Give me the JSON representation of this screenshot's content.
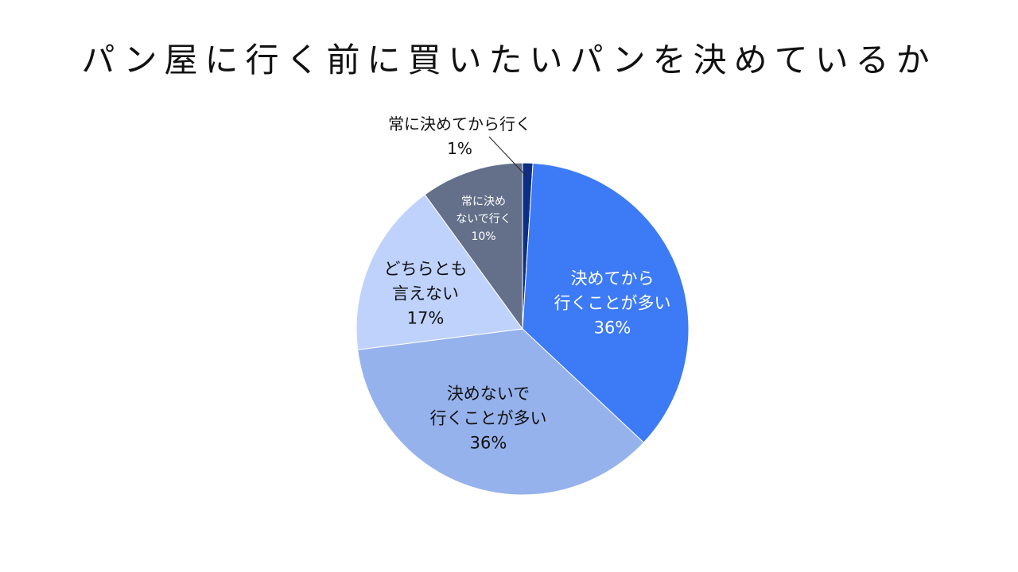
{
  "chart_data": {
    "type": "pie",
    "title": "パン屋に行く前に買いたいパンを決めているか",
    "start_angle": "12 o'clock",
    "direction": "clockwise",
    "slices": [
      {
        "label": "常に決めてから行く",
        "label_lines": [
          "常に決めてから行く",
          "1%"
        ],
        "value": 1,
        "color": "#0d2f86",
        "label_color": "#111111",
        "label_position": "outside"
      },
      {
        "label": "決めてから行くことが多い",
        "label_lines": [
          "決めてから",
          "行くことが多い",
          "36%"
        ],
        "value": 36,
        "color": "#3d7af5",
        "label_color": "#ffffff",
        "label_position": "inside"
      },
      {
        "label": "決めないで行くことが多い",
        "label_lines": [
          "決めないで",
          "行くことが多い",
          "36%"
        ],
        "value": 36,
        "color": "#96b2ec",
        "label_color": "#111111",
        "label_position": "inside"
      },
      {
        "label": "どちらとも言えない",
        "label_lines": [
          "どちらとも",
          "言えない",
          "17%"
        ],
        "value": 17,
        "color": "#bfd2fc",
        "label_color": "#111111",
        "label_position": "inside"
      },
      {
        "label": "常に決めないで行く",
        "label_lines": [
          "常に決め",
          "ないで行く",
          "10%"
        ],
        "value": 10,
        "color": "#64708a",
        "label_color": "#ffffff",
        "label_position": "inside"
      }
    ]
  }
}
